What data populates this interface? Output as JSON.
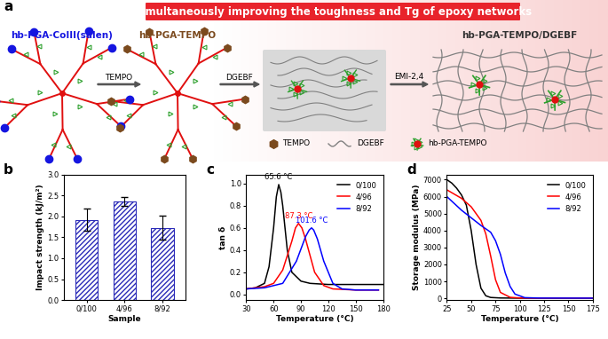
{
  "panel_labels": [
    "a",
    "b",
    "c",
    "d"
  ],
  "diagram": {
    "banner": "Simultaneously improving the toughness and Tg of epoxy networks",
    "structures": [
      "hb-PGA-CoIII(salen)",
      "hb-PGA-TEMPO",
      "hb-PGA-TEMPO/DGEBF"
    ],
    "arrows": [
      "TEMPO",
      "DGEBF",
      "EMI-2,4"
    ],
    "key_items": [
      "TEMPO",
      "DGEBF",
      "hb-PGA-TEMPO"
    ]
  },
  "chart_data": [
    {
      "type": "bar",
      "categories": [
        "0/100",
        "4/96",
        "8/92"
      ],
      "values": [
        1.92,
        2.36,
        1.73
      ],
      "errors": [
        0.27,
        0.1,
        0.28
      ],
      "color": "#2b2bb8",
      "xlabel": "Sample",
      "ylabel": "Impact strength (kJ/m²)",
      "ylim": [
        0,
        3.0
      ],
      "yticks": [
        {
          "value": 0,
          "label": "0.0"
        },
        {
          "value": 0.5,
          "label": "0.5"
        },
        {
          "value": 1.0,
          "label": "1.0"
        },
        {
          "value": 1.5,
          "label": "1.5"
        },
        {
          "value": 2.0,
          "label": "2.0"
        },
        {
          "value": 2.5,
          "label": "2.5"
        },
        {
          "value": 3.0,
          "label": "3.0"
        }
      ]
    },
    {
      "type": "line",
      "xlabel": "Temperature (°C)",
      "ylabel": "tan δ",
      "xlim": [
        30,
        180
      ],
      "xticks": [
        30,
        60,
        90,
        120,
        150,
        180
      ],
      "ylim": [
        -0.05,
        1.08
      ],
      "yticks": [
        {
          "value": 0,
          "label": "0.0"
        },
        {
          "value": 0.2,
          "label": "0.2"
        },
        {
          "value": 0.4,
          "label": "0.4"
        },
        {
          "value": 0.6,
          "label": "0.6"
        },
        {
          "value": 0.8,
          "label": "0.8"
        },
        {
          "value": 1.0,
          "label": "1.0"
        }
      ],
      "legend": "upper right",
      "series": [
        {
          "name": "0/100",
          "color": "#000000",
          "peak_label": "65.6 °C",
          "x": [
            30,
            40,
            50,
            55,
            60,
            63,
            65.6,
            68,
            70,
            75,
            80,
            90,
            100,
            120,
            150,
            180
          ],
          "values": [
            0.05,
            0.06,
            0.1,
            0.25,
            0.6,
            0.88,
            0.99,
            0.92,
            0.8,
            0.4,
            0.2,
            0.12,
            0.1,
            0.09,
            0.09,
            0.09
          ]
        },
        {
          "name": "4/96",
          "color": "#ff0000",
          "peak_label": "87.3 °C",
          "x": [
            30,
            50,
            60,
            70,
            80,
            84,
            87.3,
            91,
            95,
            105,
            115,
            125,
            150,
            175
          ],
          "values": [
            0.05,
            0.07,
            0.1,
            0.22,
            0.48,
            0.6,
            0.64,
            0.6,
            0.5,
            0.2,
            0.08,
            0.05,
            0.04,
            0.04
          ]
        },
        {
          "name": "8/92",
          "color": "#0000ff",
          "peak_label": "101.6 °C",
          "x": [
            30,
            50,
            70,
            85,
            95,
            99,
            101.6,
            104,
            108,
            115,
            125,
            135,
            150,
            175
          ],
          "values": [
            0.05,
            0.06,
            0.1,
            0.3,
            0.52,
            0.58,
            0.6,
            0.58,
            0.5,
            0.3,
            0.1,
            0.05,
            0.04,
            0.04
          ]
        }
      ]
    },
    {
      "type": "line",
      "xlabel": "Temperature (°C)",
      "ylabel": "Storage modulus (MPa)",
      "xlim": [
        25,
        175
      ],
      "xticks": [
        25,
        50,
        75,
        100,
        125,
        150,
        175
      ],
      "ylim": [
        -100,
        7300
      ],
      "yticks": [
        0,
        1000,
        2000,
        3000,
        4000,
        5000,
        6000,
        7000
      ],
      "legend": "upper right",
      "series": [
        {
          "name": "0/100",
          "color": "#000000",
          "x": [
            25,
            30,
            35,
            40,
            45,
            50,
            55,
            60,
            65,
            70,
            80,
            100,
            175
          ],
          "values": [
            7000,
            6800,
            6500,
            6100,
            5500,
            4000,
            2000,
            600,
            150,
            50,
            20,
            10,
            10
          ]
        },
        {
          "name": "4/96",
          "color": "#ff0000",
          "x": [
            25,
            40,
            50,
            60,
            65,
            70,
            75,
            80,
            90,
            100,
            175
          ],
          "values": [
            6400,
            5900,
            5400,
            4600,
            3800,
            2500,
            1100,
            350,
            60,
            20,
            10
          ]
        },
        {
          "name": "8/92",
          "color": "#0000ff",
          "x": [
            25,
            40,
            60,
            70,
            75,
            80,
            85,
            90,
            95,
            105,
            120,
            175
          ],
          "values": [
            6000,
            5200,
            4300,
            3900,
            3400,
            2600,
            1500,
            700,
            250,
            40,
            15,
            10
          ]
        }
      ]
    }
  ]
}
